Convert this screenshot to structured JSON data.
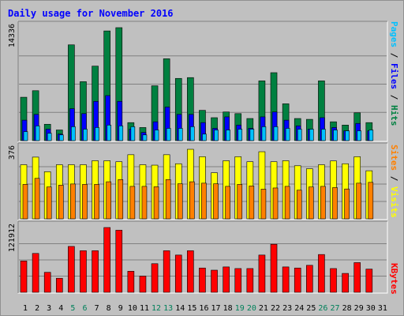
{
  "chart_data": [
    {
      "type": "bar",
      "title": "Daily usage for November 2016",
      "categories": [
        "1",
        "2",
        "3",
        "4",
        "5",
        "6",
        "7",
        "8",
        "9",
        "10",
        "11",
        "12",
        "13",
        "14",
        "15",
        "16",
        "17",
        "18",
        "19",
        "20",
        "21",
        "22",
        "23",
        "24",
        "25",
        "26",
        "27",
        "28",
        "29",
        "30",
        "31"
      ],
      "weekend_days": [
        "5",
        "6",
        "12",
        "13",
        "19",
        "20",
        "26",
        "27"
      ],
      "ylabel_max": "14336",
      "series": [
        {
          "name": "Hits",
          "color": "#008040",
          "values": [
            5300,
            6100,
            2000,
            1300,
            11700,
            7200,
            9100,
            13400,
            13800,
            2200,
            1600,
            6700,
            10000,
            7600,
            7700,
            3700,
            2800,
            3500,
            3300,
            2700,
            7300,
            8300,
            4500,
            2700,
            2600,
            7300,
            2300,
            1900,
            3400,
            2200,
            0
          ]
        },
        {
          "name": "Files",
          "color": "#0000ff",
          "values": [
            2500,
            3200,
            1400,
            800,
            3900,
            3300,
            4800,
            5500,
            4800,
            1400,
            1000,
            2300,
            4100,
            3200,
            3200,
            2200,
            1500,
            2900,
            1900,
            1500,
            2900,
            3500,
            2500,
            1800,
            1400,
            2800,
            1600,
            1200,
            2100,
            1200,
            0
          ]
        },
        {
          "name": "Pages",
          "color": "#00c0ff",
          "values": [
            1100,
            1800,
            900,
            700,
            1700,
            1400,
            1600,
            1900,
            1800,
            1700,
            700,
            1300,
            1500,
            1500,
            1700,
            800,
            1300,
            1300,
            1400,
            1400,
            1700,
            1700,
            1500,
            1400,
            1400,
            1400,
            1300,
            1200,
            1200,
            1300,
            0
          ]
        }
      ],
      "legend_top": [
        {
          "text": "Pages",
          "color": "#00c0ff"
        },
        {
          "text": " / ",
          "color": "#000000"
        },
        {
          "text": "Files",
          "color": "#0000ff"
        },
        {
          "text": " / ",
          "color": "#000000"
        },
        {
          "text": "Hits",
          "color": "#008040"
        }
      ]
    },
    {
      "type": "bar",
      "ylabel_max": "376",
      "series": [
        {
          "name": "Visits",
          "color": "#ffff00",
          "values": [
            270,
            308,
            235,
            270,
            270,
            270,
            290,
            290,
            285,
            320,
            270,
            268,
            320,
            275,
            347,
            310,
            230,
            290,
            310,
            285,
            335,
            285,
            290,
            265,
            250,
            270,
            289,
            275,
            310,
            240,
            0
          ]
        },
        {
          "name": "Sites",
          "color": "#ff8000",
          "values": [
            172,
            202,
            159,
            168,
            174,
            172,
            172,
            185,
            196,
            162,
            162,
            160,
            196,
            175,
            185,
            178,
            175,
            162,
            172,
            164,
            148,
            154,
            162,
            143,
            159,
            162,
            156,
            149,
            178,
            182,
            0
          ]
        }
      ],
      "legend_mid": [
        {
          "text": "Sites",
          "color": "#ff8000"
        },
        {
          "text": " / ",
          "color": "#000000"
        },
        {
          "text": "Visits",
          "color": "#ffff00"
        }
      ]
    },
    {
      "type": "bar",
      "ylabel_max": "121912",
      "series": [
        {
          "name": "KBytes",
          "color": "#ff0000",
          "values": [
            58000,
            72000,
            37000,
            26000,
            85000,
            77000,
            77000,
            120000,
            115000,
            39000,
            30000,
            53000,
            77000,
            69000,
            77000,
            45000,
            41000,
            47000,
            44000,
            44000,
            69000,
            89000,
            47000,
            45000,
            50000,
            70000,
            44000,
            35000,
            55000,
            43000,
            0
          ]
        }
      ],
      "legend_bot": [
        {
          "text": "KBytes",
          "color": "#ff0000"
        }
      ]
    }
  ]
}
